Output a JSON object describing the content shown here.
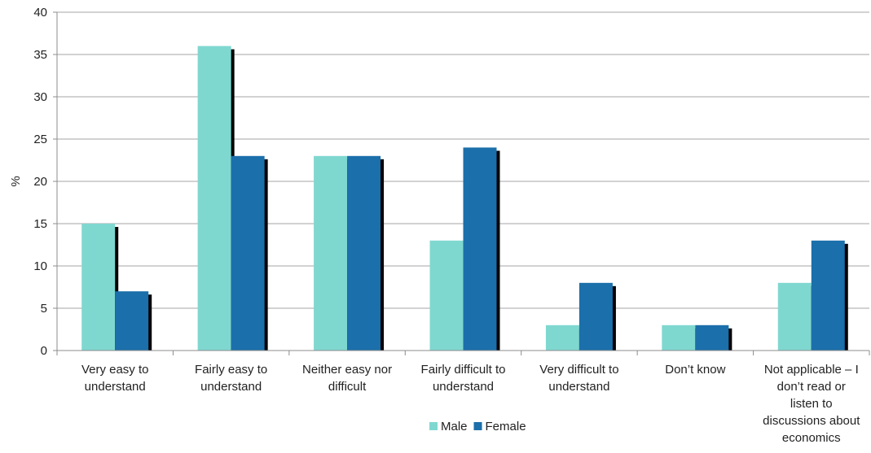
{
  "chart_data": {
    "type": "bar",
    "ylabel": "%",
    "ylim": [
      0,
      40
    ],
    "yticks": [
      0,
      5,
      10,
      15,
      20,
      25,
      30,
      35,
      40
    ],
    "grid": true,
    "legend_position": "bottom",
    "categories": [
      [
        "Very easy to",
        "understand"
      ],
      [
        "Fairly easy to",
        "understand"
      ],
      [
        "Neither easy nor",
        "difficult"
      ],
      [
        "Fairly difficult to",
        "understand"
      ],
      [
        "Very difficult to",
        "understand"
      ],
      [
        "Don’t know"
      ],
      [
        "Not applicable – I",
        "don’t read or",
        "listen to",
        "discussions about",
        "economics"
      ]
    ],
    "series": [
      {
        "name": "Male",
        "color": "#7fd8d0",
        "values": [
          15,
          36,
          23,
          13,
          3,
          3,
          8
        ]
      },
      {
        "name": "Female",
        "color": "#1b6faa",
        "values": [
          7,
          23,
          23,
          24,
          8,
          3,
          13
        ]
      }
    ]
  }
}
